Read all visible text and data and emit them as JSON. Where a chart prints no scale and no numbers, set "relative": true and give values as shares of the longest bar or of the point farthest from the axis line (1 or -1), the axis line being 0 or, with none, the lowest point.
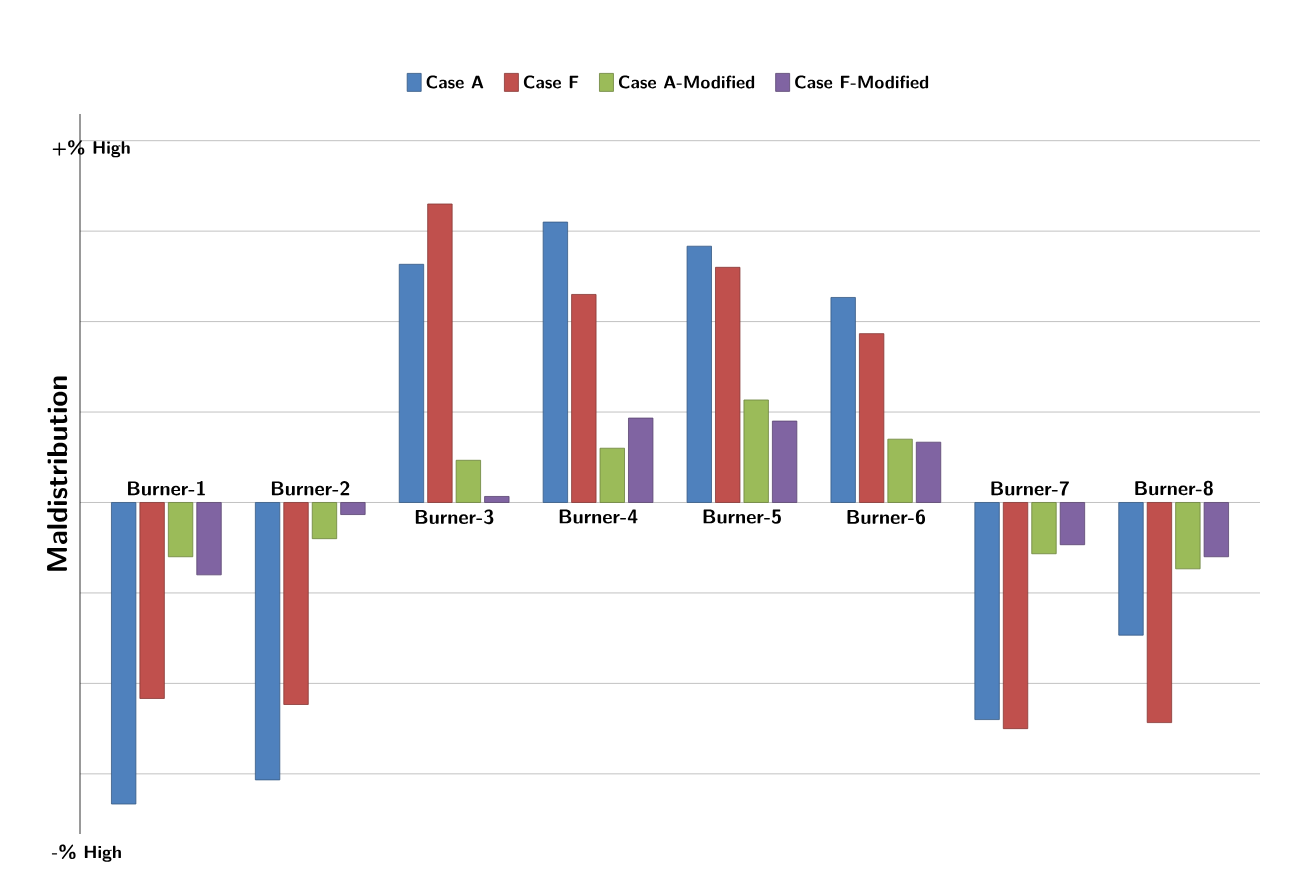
{
  "chart_data": {
    "type": "bar",
    "relative": true,
    "ylabel": "Maldistribution",
    "categories": [
      "Burner-1",
      "Burner-2",
      "Burner-3",
      "Burner-4",
      "Burner-5",
      "Burner-6",
      "Burner-7",
      "Burner-8"
    ],
    "series": [
      {
        "name": "Case A",
        "color": "#4f81bd",
        "values": [
          -1,
          -0.92,
          0.79,
          0.93,
          0.85,
          0.68,
          -0.72,
          -0.44
        ]
      },
      {
        "name": "Case F",
        "color": "#c0504d",
        "values": [
          -0.65,
          -0.67,
          0.99,
          0.69,
          0.78,
          0.56,
          -0.75,
          -0.73
        ]
      },
      {
        "name": "Case A-Modified",
        "color": "#9bbb59",
        "values": [
          -0.18,
          -0.12,
          0.14,
          0.18,
          0.34,
          0.21,
          -0.17,
          -0.22
        ]
      },
      {
        "name": "Case F-Modified",
        "color": "#8064a2",
        "values": [
          -0.24,
          -0.04,
          0.02,
          0.28,
          0.27,
          0.2,
          -0.14,
          -0.18
        ]
      }
    ],
    "annotations": [
      "+% High",
      "-% High"
    ],
    "grid": "y",
    "legend": "top"
  }
}
